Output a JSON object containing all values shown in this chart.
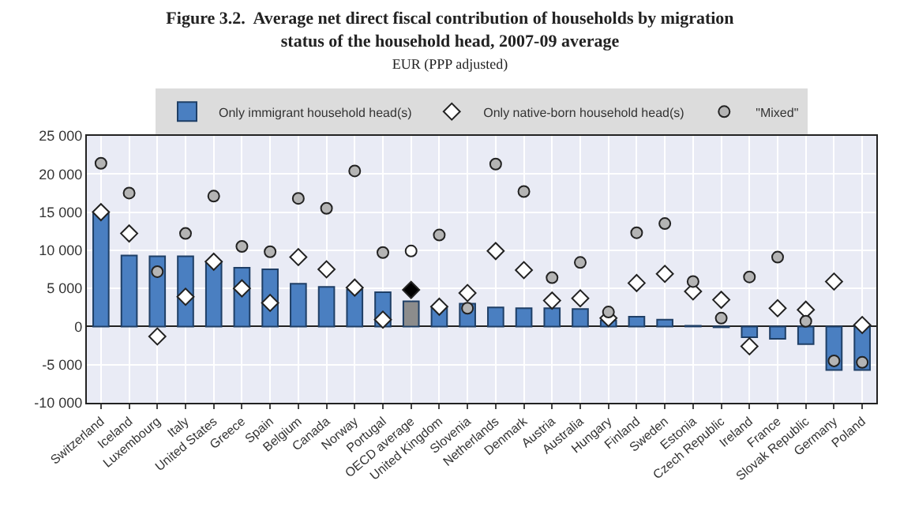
{
  "chart_data": {
    "type": "bar",
    "title": "Figure 3.2.  Average net direct fiscal contribution of households by migration status of the household head, 2007-09 average",
    "subtitle": "EUR (PPP adjusted)",
    "categories": [
      "Switzerland",
      "Iceland",
      "Luxembourg",
      "Italy",
      "United States",
      "Greece",
      "Spain",
      "Belgium",
      "Canada",
      "Norway",
      "Portugal",
      "OECD average",
      "United Kingdom",
      "Slovenia",
      "Netherlands",
      "Denmark",
      "Austria",
      "Australia",
      "Hungary",
      "Finland",
      "Sweden",
      "Estonia",
      "Czech Republic",
      "Ireland",
      "France",
      "Slovak Republic",
      "Germany",
      "Poland"
    ],
    "series": [
      {
        "name": "Only immigrant household head(s)",
        "colors": [
          "#4a7fc1",
          "#4a7fc1",
          "#4a7fc1",
          "#4a7fc1",
          "#4a7fc1",
          "#4a7fc1",
          "#4a7fc1",
          "#4a7fc1",
          "#4a7fc1",
          "#4a7fc1",
          "#4a7fc1",
          "#8c8c8c",
          "#4a7fc1",
          "#4a7fc1",
          "#4a7fc1",
          "#4a7fc1",
          "#4a7fc1",
          "#4a7fc1",
          "#4a7fc1",
          "#4a7fc1",
          "#4a7fc1",
          "#4a7fc1",
          "#4a7fc1",
          "#4a7fc1",
          "#4a7fc1",
          "#4a7fc1",
          "#4a7fc1",
          "#4a7fc1"
        ],
        "values": [
          14800,
          9300,
          9200,
          9200,
          8500,
          7700,
          7500,
          5600,
          5200,
          4800,
          4500,
          3300,
          2600,
          3000,
          2500,
          2400,
          2400,
          2300,
          800,
          1300,
          900,
          100,
          -100,
          -1400,
          -1600,
          -2300,
          -5700,
          -5700
        ]
      },
      {
        "name": "Only native-born household head(s)",
        "type": "scatter",
        "marker": "diamond",
        "colors": [
          "#ffffff",
          "#ffffff",
          "#ffffff",
          "#ffffff",
          "#ffffff",
          "#ffffff",
          "#ffffff",
          "#ffffff",
          "#ffffff",
          "#ffffff",
          "#ffffff",
          "#000000",
          "#ffffff",
          "#ffffff",
          "#ffffff",
          "#ffffff",
          "#ffffff",
          "#ffffff",
          "#ffffff",
          "#ffffff",
          "#ffffff",
          "#ffffff",
          "#ffffff",
          "#ffffff",
          "#ffffff",
          "#ffffff",
          "#ffffff",
          "#ffffff"
        ],
        "values": [
          15000,
          12200,
          -1300,
          3900,
          8500,
          5000,
          3100,
          9100,
          7500,
          5100,
          900,
          4800,
          2600,
          4400,
          9900,
          7400,
          3400,
          3700,
          1100,
          5700,
          6900,
          4600,
          3500,
          -2600,
          2400,
          2200,
          5900,
          200
        ]
      },
      {
        "name": "\"Mixed\"",
        "type": "scatter",
        "marker": "circle",
        "colors": [
          "#b4b4b4",
          "#b4b4b4",
          "#b4b4b4",
          "#b4b4b4",
          "#b4b4b4",
          "#b4b4b4",
          "#b4b4b4",
          "#b4b4b4",
          "#b4b4b4",
          "#b4b4b4",
          "#b4b4b4",
          "#ffffff",
          "#b4b4b4",
          "#b4b4b4",
          "#b4b4b4",
          "#b4b4b4",
          "#b4b4b4",
          "#b4b4b4",
          "#b4b4b4",
          "#b4b4b4",
          "#b4b4b4",
          "#b4b4b4",
          "#b4b4b4",
          "#b4b4b4",
          "#b4b4b4",
          "#b4b4b4",
          "#b4b4b4",
          "#b4b4b4"
        ],
        "values": [
          21400,
          17500,
          7200,
          12200,
          17100,
          10500,
          9800,
          16800,
          15500,
          20400,
          9700,
          9900,
          12000,
          2400,
          21300,
          17700,
          6400,
          8400,
          1900,
          12300,
          13500,
          5900,
          1100,
          6500,
          9100,
          700,
          -4500,
          -4700
        ]
      }
    ],
    "ylim": [
      -10000,
      25000
    ],
    "yticks": [
      {
        "value": -10000,
        "label": "-10 000"
      },
      {
        "value": -5000,
        "label": "-5 000"
      },
      0,
      {
        "value": 5000,
        "label": "5 000"
      },
      {
        "value": 10000,
        "label": "10 000"
      },
      {
        "value": 15000,
        "label": "15 000"
      },
      {
        "value": 20000,
        "label": "20 000"
      },
      {
        "value": 25000,
        "label": "25 000"
      }
    ],
    "grid": true,
    "legend": "top"
  }
}
